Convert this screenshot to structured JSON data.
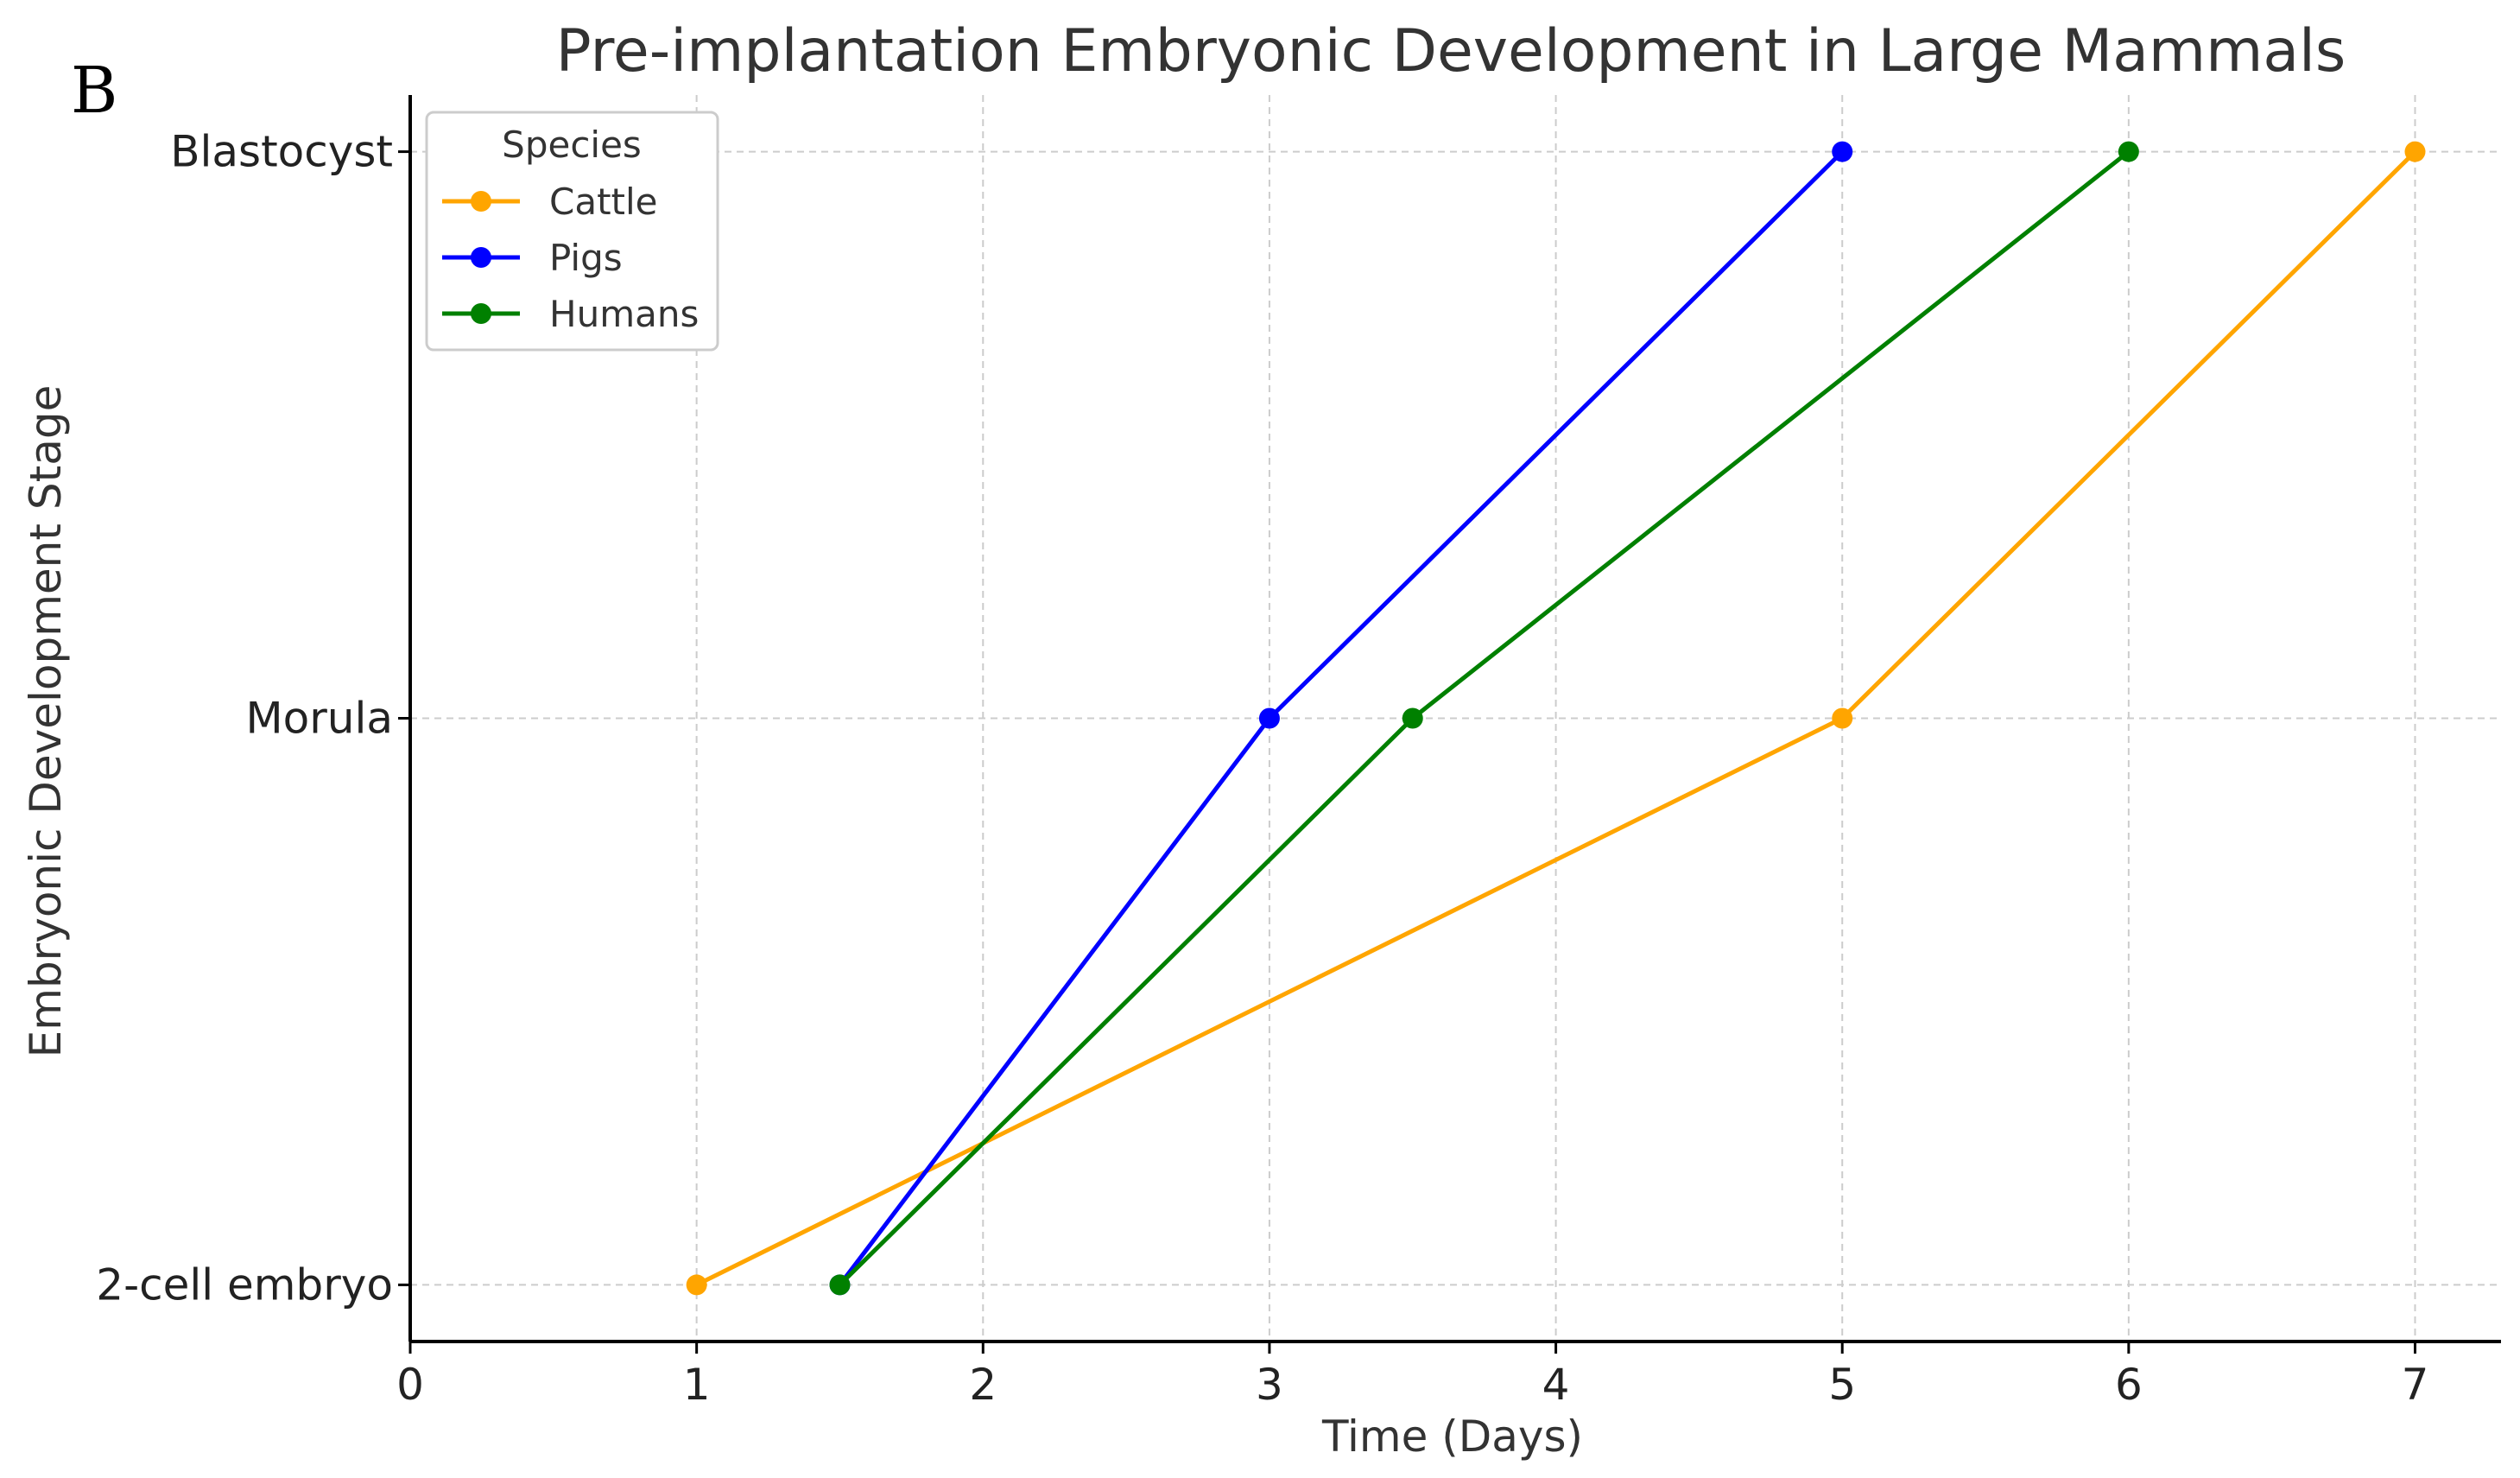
{
  "panel_label": "B",
  "chart_data": {
    "type": "line",
    "title": "Pre-implantation Embryonic Development in Large Mammals",
    "xlabel": "Time (Days)",
    "ylabel": "Embryonic Development Stage",
    "xlim": [
      0,
      7.3
    ],
    "xticks": [
      0,
      1,
      2,
      3,
      4,
      5,
      6,
      7
    ],
    "ylim": [
      -0.1,
      2.1
    ],
    "yticks": [
      0,
      1,
      2
    ],
    "ytick_labels": [
      "2-cell embryo",
      "Morula",
      "Blastocyst"
    ],
    "grid": true,
    "legend_title": "Species",
    "legend_position": "top-left",
    "series": [
      {
        "name": "Cattle",
        "color": "#FFA500",
        "x": [
          1,
          5,
          7
        ],
        "y": [
          0,
          1,
          2
        ]
      },
      {
        "name": "Pigs",
        "color": "#0000FF",
        "x": [
          1.5,
          3,
          5
        ],
        "y": [
          0,
          1,
          2
        ]
      },
      {
        "name": "Humans",
        "color": "#008000",
        "x": [
          1.5,
          3.5,
          6
        ],
        "y": [
          0,
          1,
          2
        ]
      }
    ]
  }
}
